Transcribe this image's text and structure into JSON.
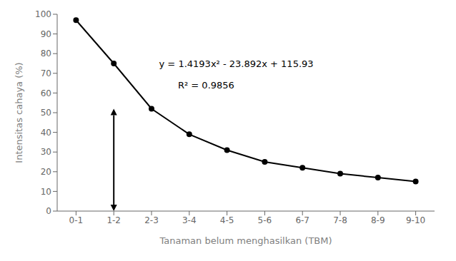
{
  "chart_data": {
    "type": "line",
    "x": [
      0.5,
      1.5,
      2.5,
      3.5,
      4.5,
      5.5,
      6.5,
      7.5,
      8.5,
      9.5
    ],
    "values": [
      97,
      75,
      52,
      39,
      31,
      25,
      22,
      19,
      17,
      15
    ],
    "color": "#000000",
    "marker": "circle",
    "xlabel": "Tanaman belum menghasilkan (TBM)",
    "ylabel": "Intensitas cahaya (%)",
    "xlim": [
      0,
      10
    ],
    "xticks": [
      {
        "value": 0.5,
        "label": "0-1"
      },
      {
        "value": 1.5,
        "label": "1-2"
      },
      {
        "value": 2.5,
        "label": "2-3"
      },
      {
        "value": 3.5,
        "label": "3-4"
      },
      {
        "value": 4.5,
        "label": "4-5"
      },
      {
        "value": 5.5,
        "label": "5-6"
      },
      {
        "value": 6.5,
        "label": "6-7"
      },
      {
        "value": 7.5,
        "label": "7-8"
      },
      {
        "value": 8.5,
        "label": "8-9"
      },
      {
        "value": 9.5,
        "label": "9-10"
      }
    ],
    "ylim": [
      0,
      100
    ],
    "yticks": [
      0,
      10,
      20,
      30,
      40,
      50,
      60,
      70,
      80,
      90,
      100
    ],
    "grid": false,
    "annotations": [
      {
        "text": "y = 1.4193x² - 23.892x + 115.93",
        "x": 2.7,
        "y": 75
      },
      {
        "text": "R² = 0.9856",
        "x": 3.2,
        "y": 64
      }
    ],
    "arrow": {
      "x": 1.5,
      "y_from": 0,
      "y_to": 52
    }
  }
}
